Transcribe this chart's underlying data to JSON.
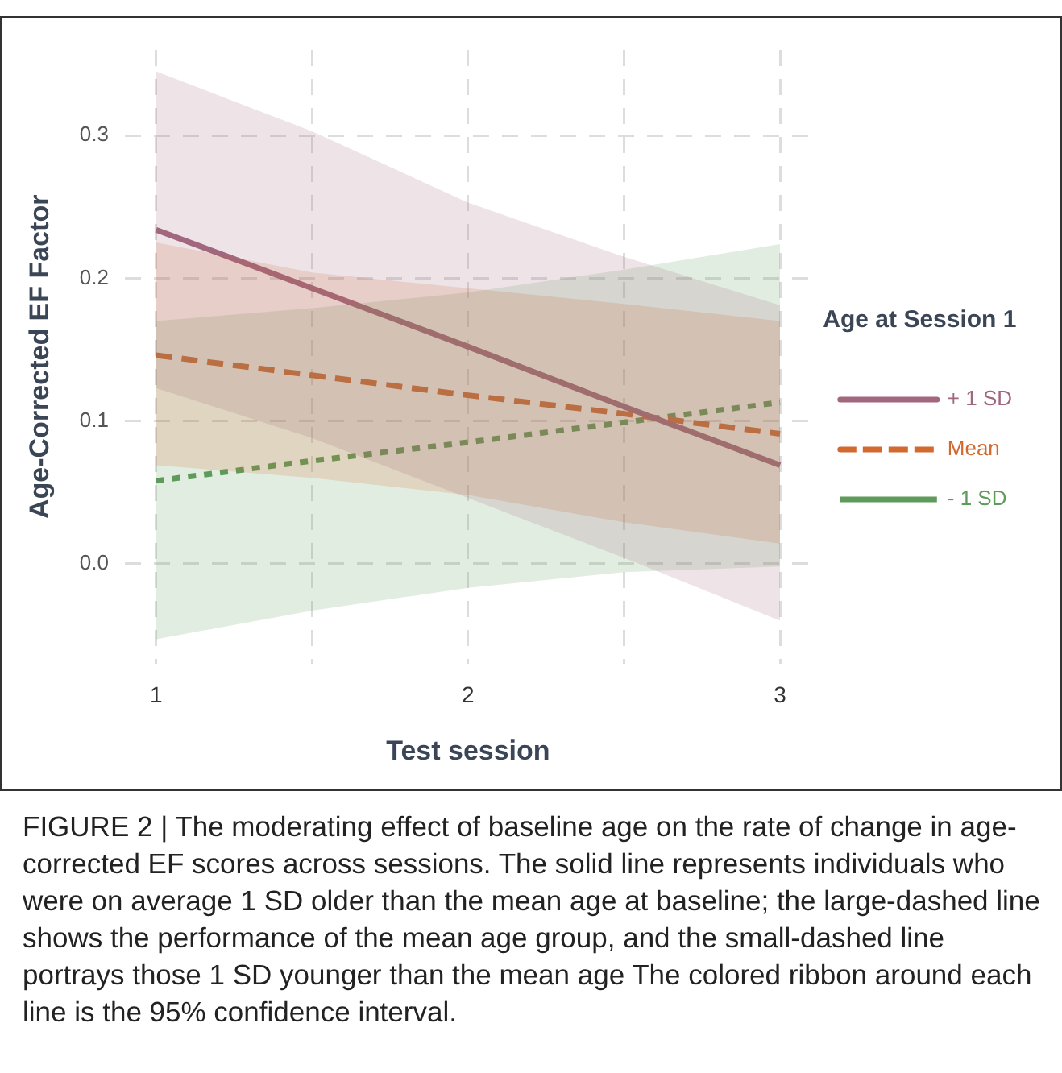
{
  "chart_data": {
    "type": "line",
    "xlabel": "Test session",
    "ylabel": "Age-Corrected EF Factor",
    "legend_title": "Age at Session 1",
    "legend": "right",
    "grid": true,
    "x": [
      1,
      1.5,
      2,
      2.5,
      3
    ],
    "xlim": [
      0.9,
      3.1
    ],
    "xticks": [
      1,
      {
        "value": 1.5,
        "label": null
      },
      2,
      {
        "value": 2.5,
        "label": null
      },
      3
    ],
    "ylim": [
      -0.07,
      0.36
    ],
    "yticks": [
      {
        "value": 0,
        "label": "0.0"
      },
      0.1,
      0.2,
      0.3
    ],
    "series": [
      {
        "name": "+ 1 SD",
        "color": "#a0677f",
        "line_style": "solid",
        "values": [
          0.234,
          0.193,
          0.152,
          0.11,
          0.069
        ],
        "lower": [
          0.123,
          0.088,
          0.046,
          0.004,
          -0.04
        ],
        "upper": [
          0.345,
          0.303,
          0.253,
          0.215,
          0.181
        ]
      },
      {
        "name": "Mean",
        "color": "#d2692f",
        "line_style": "dashed",
        "values": [
          0.146,
          0.132,
          0.118,
          0.105,
          0.091
        ],
        "lower": [
          0.069,
          0.06,
          0.048,
          0.029,
          0.014
        ],
        "upper": [
          0.225,
          0.204,
          0.193,
          0.182,
          0.17
        ]
      },
      {
        "name": "- 1 SD",
        "color": "#5e9a5a",
        "line_style": "dotted",
        "values": [
          0.058,
          0.072,
          0.085,
          0.099,
          0.113
        ],
        "lower": [
          -0.053,
          -0.033,
          -0.017,
          -0.006,
          -0.002
        ],
        "upper": [
          0.17,
          0.179,
          0.19,
          0.206,
          0.224
        ]
      }
    ],
    "annotations": [
      "FIGURE 2 | The moderating effect of baseline age on the rate of change in age-corrected EF scores across sessions. The solid line represents individuals who were on average 1 SD older than the mean age at baseline; the large-dashed line shows the performance of the mean age group, and the small-dashed line portrays those 1 SD younger than the mean age The colored ribbon around each line is the 95% confidence interval."
    ]
  }
}
